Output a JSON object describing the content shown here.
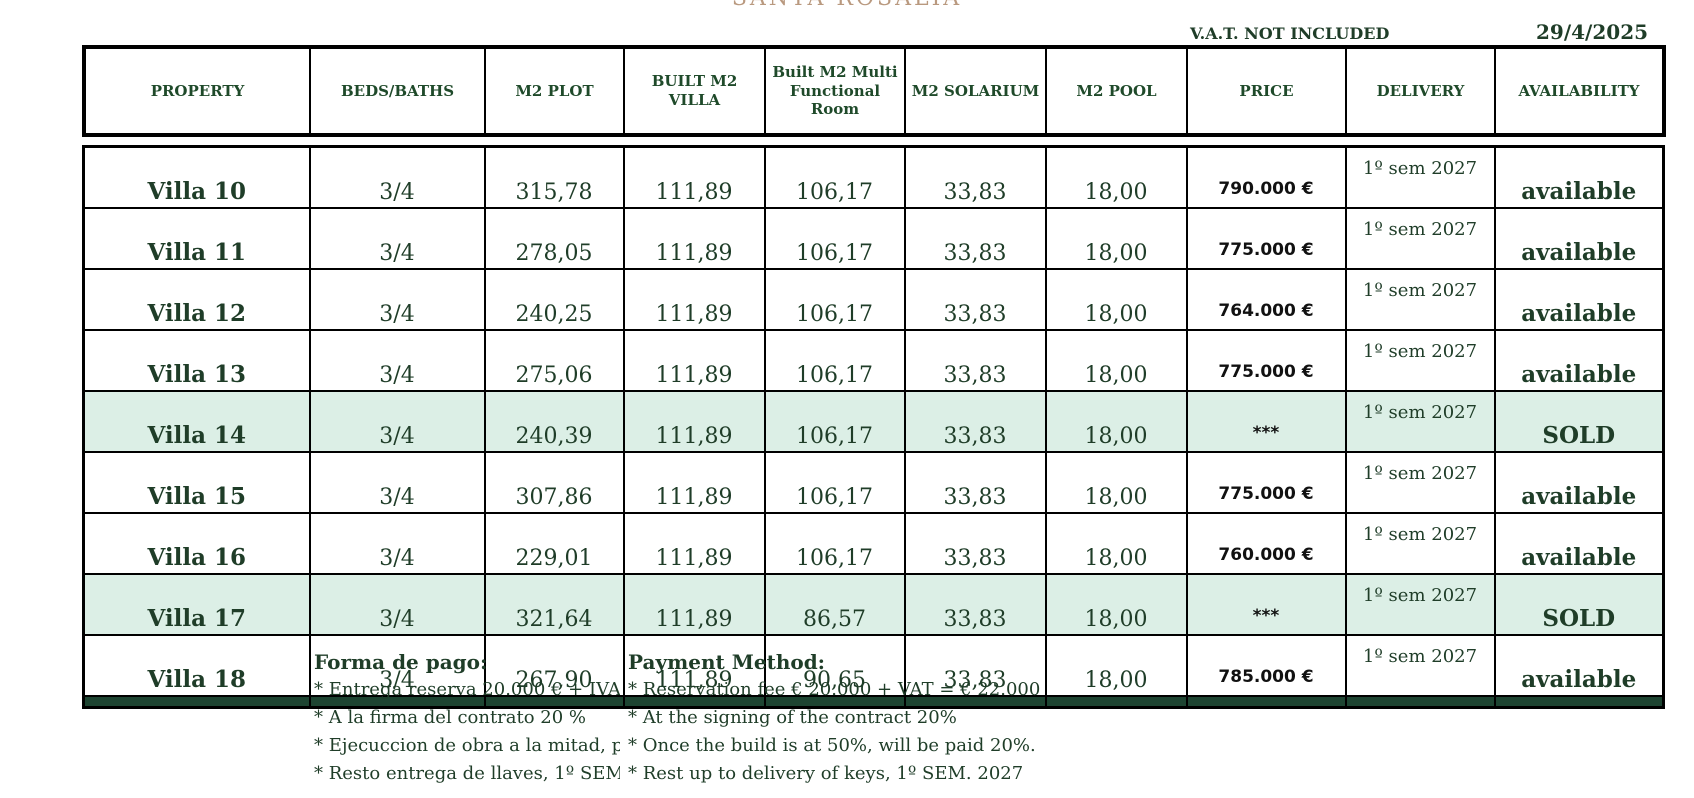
{
  "document": {
    "top_title": "SANTA ROSALIA",
    "vat_note": "V.A.T. NOT INCLUDED",
    "date": "29/4/2025"
  },
  "table": {
    "headers": [
      "PROPERTY",
      "BEDS/BATHS",
      "M2 PLOT",
      "BUILT M2 VILLA",
      "Built M2 Multi Functional Room",
      "M2 SOLARIUM",
      "M2 POOL",
      "PRICE",
      "DELIVERY",
      "AVAILABILITY"
    ],
    "rows": [
      {
        "property": "Villa 10",
        "beds_baths": "3/4",
        "plot": "315,78",
        "built_villa": "111,89",
        "multi_room": "106,17",
        "solarium": "33,83",
        "pool": "18,00",
        "price": "790.000 €",
        "delivery": "1º sem 2027",
        "availability": "available",
        "sold": false
      },
      {
        "property": "Villa 11",
        "beds_baths": "3/4",
        "plot": "278,05",
        "built_villa": "111,89",
        "multi_room": "106,17",
        "solarium": "33,83",
        "pool": "18,00",
        "price": "775.000 €",
        "delivery": "1º sem 2027",
        "availability": "available",
        "sold": false
      },
      {
        "property": "Villa 12",
        "beds_baths": "3/4",
        "plot": "240,25",
        "built_villa": "111,89",
        "multi_room": "106,17",
        "solarium": "33,83",
        "pool": "18,00",
        "price": "764.000 €",
        "delivery": "1º sem 2027",
        "availability": "available",
        "sold": false
      },
      {
        "property": "Villa 13",
        "beds_baths": "3/4",
        "plot": "275,06",
        "built_villa": "111,89",
        "multi_room": "106,17",
        "solarium": "33,83",
        "pool": "18,00",
        "price": "775.000 €",
        "delivery": "1º sem 2027",
        "availability": "available",
        "sold": false
      },
      {
        "property": "Villa 14",
        "beds_baths": "3/4",
        "plot": "240,39",
        "built_villa": "111,89",
        "multi_room": "106,17",
        "solarium": "33,83",
        "pool": "18,00",
        "price": "***",
        "delivery": "1º sem 2027",
        "availability": "SOLD",
        "sold": true
      },
      {
        "property": "Villa 15",
        "beds_baths": "3/4",
        "plot": "307,86",
        "built_villa": "111,89",
        "multi_room": "106,17",
        "solarium": "33,83",
        "pool": "18,00",
        "price": "775.000 €",
        "delivery": "1º sem 2027",
        "availability": "available",
        "sold": false
      },
      {
        "property": "Villa 16",
        "beds_baths": "3/4",
        "plot": "229,01",
        "built_villa": "111,89",
        "multi_room": "106,17",
        "solarium": "33,83",
        "pool": "18,00",
        "price": "760.000 €",
        "delivery": "1º sem 2027",
        "availability": "available",
        "sold": false
      },
      {
        "property": "Villa 17",
        "beds_baths": "3/4",
        "plot": "321,64",
        "built_villa": "111,89",
        "multi_room": "86,57",
        "solarium": "33,83",
        "pool": "18,00",
        "price": "***",
        "delivery": "1º sem 2027",
        "availability": "SOLD",
        "sold": true
      },
      {
        "property": "Villa 18",
        "beds_baths": "3/4",
        "plot": "267,90",
        "built_villa": "111,89",
        "multi_room": "90,65",
        "solarium": "33,83",
        "pool": "18,00",
        "price": "785.000 €",
        "delivery": "1º sem 2027",
        "availability": "available",
        "sold": false
      }
    ]
  },
  "payment": {
    "es": {
      "title": "Forma de pago:",
      "lines": [
        "* Entrega reserva 20.000 €  + IVA",
        "* A la firma del contrato 20 %",
        "* Ejecuccion de obra a la mitad, p",
        "* Resto entrega de llaves,  1º SEM"
      ]
    },
    "en": {
      "title": "Payment Method:",
      "lines": [
        "* Reservation fee € 20.000 + VAT = € 22.000",
        "* At the signing of the contract 20%",
        "* Once the build is at 50%, will be paid 20%.",
        "* Rest up to delivery of keys,  1º SEM. 2027"
      ]
    }
  },
  "colors": {
    "text_green": "#1f3d28",
    "sold_row_bg": "#dcefe6",
    "bottom_bar": "#1d4431",
    "title_tan": "#b9997f"
  }
}
